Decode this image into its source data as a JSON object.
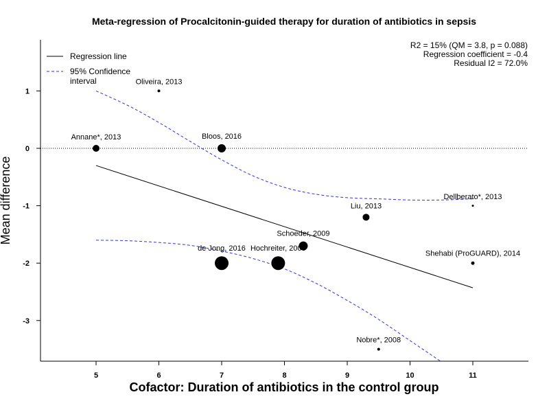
{
  "chart_data": {
    "type": "scatter",
    "title": "Meta-regression of  Procalcitonin-guided therapy for duration of antibiotics in sepsis",
    "xlabel": "Cofactor:  Duration of antibiotics in the control group",
    "ylabel": "Mean difference",
    "xlim": [
      4.2,
      11.8
    ],
    "ylim": [
      -3.7,
      1.85
    ],
    "xticks": [
      5,
      6,
      7,
      8,
      9,
      10,
      11
    ],
    "yticks": [
      1,
      0,
      -1,
      -2,
      -3
    ],
    "reference_line_y": 0,
    "stats": [
      "R2 = 15% (QM = 3.8, p = 0.088)",
      "Regression coefficient = -0.4",
      "Residual I2 = 72.0%"
    ],
    "legend": [
      {
        "label": "Regression line",
        "style": "solid",
        "color": "#000000"
      },
      {
        "label": "95% Confidence\ninterval",
        "style": "dashed",
        "color": "#3333cc"
      }
    ],
    "legend_position": "top-left",
    "points": [
      {
        "label": "Oliveira, 2013",
        "x": 6.0,
        "y": 1.0,
        "size": 2
      },
      {
        "label": "Annane*, 2013",
        "x": 5.0,
        "y": 0.0,
        "size": 5
      },
      {
        "label": "Bloos, 2016",
        "x": 7.0,
        "y": 0.0,
        "size": 6
      },
      {
        "label": "Dellberato*, 2013",
        "x": 11.0,
        "y": -1.0,
        "size": 1.5
      },
      {
        "label": "Liu, 2013",
        "x": 9.3,
        "y": -1.2,
        "size": 5
      },
      {
        "label": "Schoeder, 2009",
        "x": 8.3,
        "y": -1.7,
        "size": 6.5
      },
      {
        "label": "de Jong, 2016",
        "x": 7.0,
        "y": -2.0,
        "size": 10
      },
      {
        "label": "Hochreiter, 2009",
        "x": 7.9,
        "y": -2.0,
        "size": 10
      },
      {
        "label": "Shehabi (ProGUARD), 2014",
        "x": 11.0,
        "y": -2.0,
        "size": 2.5
      },
      {
        "label": "Nobre*, 2008",
        "x": 9.5,
        "y": -3.5,
        "size": 2
      }
    ],
    "regression_line": {
      "x": [
        5,
        11
      ],
      "y": [
        -0.3,
        -2.43
      ]
    },
    "ci_upper": {
      "x": [
        5.0,
        5.5,
        6.0,
        6.5,
        7.0,
        7.5,
        8.0,
        8.5,
        9.0,
        9.5,
        10.0,
        10.5,
        11.0
      ],
      "y": [
        1.0,
        0.75,
        0.45,
        0.12,
        -0.2,
        -0.48,
        -0.68,
        -0.8,
        -0.86,
        -0.88,
        -0.9,
        -0.9,
        -0.88
      ]
    },
    "ci_lower": {
      "x": [
        5.0,
        5.5,
        6.0,
        6.5,
        7.0,
        7.5,
        8.0,
        8.5,
        9.0,
        9.5,
        10.0,
        10.5,
        11.0
      ],
      "y": [
        -1.6,
        -1.61,
        -1.64,
        -1.69,
        -1.79,
        -1.92,
        -2.1,
        -2.35,
        -2.65,
        -2.98,
        -3.35,
        -3.72,
        -4.1
      ]
    }
  }
}
